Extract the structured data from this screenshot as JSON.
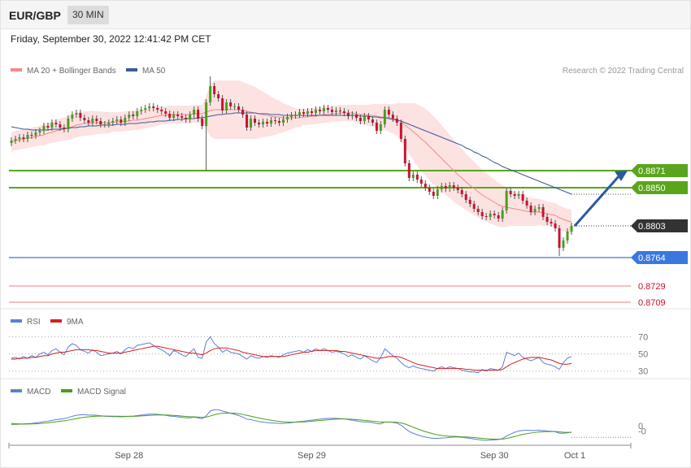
{
  "header": {
    "symbol": "EUR/GBP",
    "timeframe": "30 MIN"
  },
  "timestamp": "Friday, September 30, 2022 12:41:42 PM CET",
  "credit": "Research © 2022 Trading Central",
  "colors": {
    "up": "#4a9e1a",
    "down": "#c8102e",
    "ma20": "#f08a8a",
    "ma50": "#3a5a99",
    "band_fill": "#fde2e2",
    "resistance": "#5aa51c",
    "support": "#3a78e0",
    "support_minor": "#f0a8a8",
    "price": "#333333",
    "arrow": "#2c5aa0",
    "rsi": "#5b7fd4",
    "rsi_ma": "#d81e1e",
    "macd": "#5b7fd4",
    "macd_signal": "#4a9e1a"
  },
  "chart_data": [
    {
      "type": "candlestick",
      "legend": [
        "MA 20 + Bollinger Bands",
        "MA 50"
      ],
      "x_labels": [
        "Sep 28",
        "Sep 29",
        "Sep 30",
        "Oct 1"
      ],
      "ylim": [
        0.8705,
        0.8985
      ],
      "levels": [
        {
          "value": 0.8871,
          "label": "0.8871",
          "kind": "resistance"
        },
        {
          "value": 0.885,
          "label": "0.8850",
          "kind": "resistance"
        },
        {
          "value": 0.8803,
          "label": "0.8803",
          "kind": "price"
        },
        {
          "value": 0.8764,
          "label": "0.8764",
          "kind": "support"
        },
        {
          "value": 0.8729,
          "label": "0.8729",
          "kind": "support_minor"
        },
        {
          "value": 0.8709,
          "label": "0.8709",
          "kind": "support_minor"
        }
      ],
      "forecast": {
        "from": 0.8803,
        "to": 0.8871
      },
      "candles_close": [
        0.8908,
        0.891,
        0.8912,
        0.891,
        0.8915,
        0.8914,
        0.8918,
        0.892,
        0.8926,
        0.8924,
        0.893,
        0.8928,
        0.8924,
        0.8922,
        0.8935,
        0.894,
        0.8942,
        0.8936,
        0.8933,
        0.893,
        0.8935,
        0.8932,
        0.8928,
        0.8928,
        0.893,
        0.8932,
        0.8934,
        0.893,
        0.8936,
        0.894,
        0.8938,
        0.8944,
        0.8946,
        0.8948,
        0.895,
        0.8948,
        0.8946,
        0.8944,
        0.8941,
        0.8936,
        0.894,
        0.8938,
        0.8936,
        0.8934,
        0.894,
        0.8946,
        0.8935,
        0.8926,
        0.8955,
        0.8975,
        0.8965,
        0.896,
        0.8945,
        0.8955,
        0.895,
        0.895,
        0.8946,
        0.894,
        0.8924,
        0.8935,
        0.893,
        0.8928,
        0.8931,
        0.8929,
        0.8933,
        0.8932,
        0.893,
        0.8934,
        0.8937,
        0.8939,
        0.894,
        0.8943,
        0.8941,
        0.8944,
        0.8942,
        0.8946,
        0.8944,
        0.8948,
        0.8946,
        0.8943,
        0.8945,
        0.8944,
        0.8942,
        0.8938,
        0.894,
        0.8936,
        0.8932,
        0.8938,
        0.8934,
        0.893,
        0.892,
        0.8928,
        0.8946,
        0.894,
        0.8935,
        0.893,
        0.891,
        0.888,
        0.8862,
        0.8866,
        0.886,
        0.8855,
        0.885,
        0.8845,
        0.884,
        0.8848,
        0.8852,
        0.8849,
        0.8853,
        0.885,
        0.8847,
        0.8842,
        0.8835,
        0.883,
        0.8824,
        0.882,
        0.8815,
        0.8814,
        0.8818,
        0.8816,
        0.8812,
        0.8822,
        0.8846,
        0.8842,
        0.884,
        0.8842,
        0.8834,
        0.8828,
        0.882,
        0.8824,
        0.8826,
        0.8814,
        0.8808,
        0.8806,
        0.88,
        0.8776,
        0.8785,
        0.8796,
        0.8803
      ],
      "ma20": [
        0.8906,
        0.8908,
        0.8909,
        0.891,
        0.8911,
        0.8912,
        0.8913,
        0.8914,
        0.8915,
        0.8917,
        0.8918,
        0.892,
        0.8921,
        0.8922,
        0.8924,
        0.8925,
        0.8927,
        0.8928,
        0.8929,
        0.8929,
        0.893,
        0.893,
        0.893,
        0.893,
        0.893,
        0.8931,
        0.8931,
        0.8931,
        0.8932,
        0.8932,
        0.8933,
        0.8933,
        0.8934,
        0.8935,
        0.8936,
        0.8937,
        0.8938,
        0.8939,
        0.8939,
        0.894,
        0.894,
        0.894,
        0.894,
        0.894,
        0.894,
        0.8941,
        0.8941,
        0.8941,
        0.8943,
        0.8945,
        0.8946,
        0.8946,
        0.8946,
        0.8946,
        0.8946,
        0.8946,
        0.8946,
        0.8945,
        0.8944,
        0.8943,
        0.8942,
        0.8941,
        0.894,
        0.8939,
        0.8938,
        0.8937,
        0.8937,
        0.8936,
        0.8936,
        0.8936,
        0.8936,
        0.8936,
        0.8937,
        0.8937,
        0.8938,
        0.8938,
        0.8939,
        0.894,
        0.894,
        0.8941,
        0.8941,
        0.8942,
        0.8942,
        0.8942,
        0.8942,
        0.8941,
        0.894,
        0.894,
        0.8939,
        0.8939,
        0.8938,
        0.8937,
        0.8937,
        0.8936,
        0.8935,
        0.8934,
        0.8931,
        0.8927,
        0.8923,
        0.8919,
        0.8915,
        0.891,
        0.8906,
        0.8901,
        0.8896,
        0.8891,
        0.8886,
        0.8881,
        0.8876,
        0.8871,
        0.8866,
        0.8862,
        0.8857,
        0.8853,
        0.8849,
        0.8845,
        0.8841,
        0.8838,
        0.8835,
        0.8832,
        0.8829,
        0.8827,
        0.8826,
        0.8825,
        0.8824,
        0.8823,
        0.8822,
        0.8821,
        0.882,
        0.882,
        0.882,
        0.8819,
        0.8818,
        0.8817,
        0.8816,
        0.8813,
        0.8811,
        0.8809,
        0.8808
      ],
      "ma50": [
        0.8925,
        0.8924,
        0.8923,
        0.8922,
        0.8922,
        0.8921,
        0.8921,
        0.8921,
        0.8921,
        0.8921,
        0.8922,
        0.8922,
        0.8922,
        0.8923,
        0.8923,
        0.8924,
        0.8924,
        0.8925,
        0.8925,
        0.8926,
        0.8926,
        0.8926,
        0.8927,
        0.8927,
        0.8927,
        0.8927,
        0.8928,
        0.8928,
        0.8928,
        0.8929,
        0.8929,
        0.8929,
        0.893,
        0.893,
        0.8931,
        0.8931,
        0.8932,
        0.8932,
        0.8932,
        0.8933,
        0.8933,
        0.8934,
        0.8934,
        0.8935,
        0.8935,
        0.8935,
        0.8936,
        0.8936,
        0.8937,
        0.8938,
        0.8939,
        0.894,
        0.894,
        0.8941,
        0.8941,
        0.8942,
        0.8942,
        0.8942,
        0.8942,
        0.8942,
        0.8942,
        0.8941,
        0.8941,
        0.8941,
        0.894,
        0.894,
        0.894,
        0.8939,
        0.8939,
        0.8939,
        0.8939,
        0.8939,
        0.8939,
        0.8939,
        0.8939,
        0.8939,
        0.8939,
        0.8939,
        0.8939,
        0.8939,
        0.8939,
        0.8939,
        0.8939,
        0.8939,
        0.8939,
        0.8939,
        0.8938,
        0.8938,
        0.8938,
        0.8937,
        0.8937,
        0.8936,
        0.8936,
        0.8935,
        0.8934,
        0.8933,
        0.8932,
        0.893,
        0.8928,
        0.8926,
        0.8924,
        0.8922,
        0.892,
        0.8918,
        0.8916,
        0.8914,
        0.8912,
        0.891,
        0.8908,
        0.8906,
        0.8904,
        0.8902,
        0.8899,
        0.8897,
        0.8894,
        0.8892,
        0.8889,
        0.8887,
        0.8884,
        0.8881,
        0.8879,
        0.8876,
        0.8874,
        0.8872,
        0.887,
        0.8868,
        0.8866,
        0.8864,
        0.8862,
        0.886,
        0.8858,
        0.8856,
        0.8854,
        0.8852,
        0.885,
        0.8848,
        0.8846,
        0.8844,
        0.8842
      ],
      "band_width": [
        0.0012,
        0.0012,
        0.0012,
        0.0012,
        0.0012,
        0.0012,
        0.0012,
        0.0012,
        0.0013,
        0.0013,
        0.0013,
        0.0014,
        0.0014,
        0.0014,
        0.0015,
        0.0015,
        0.0015,
        0.0015,
        0.0015,
        0.0015,
        0.0015,
        0.0014,
        0.0014,
        0.0013,
        0.0013,
        0.0012,
        0.0012,
        0.0012,
        0.0012,
        0.0012,
        0.0012,
        0.0012,
        0.0012,
        0.0012,
        0.0012,
        0.0012,
        0.0012,
        0.0011,
        0.0011,
        0.0011,
        0.0011,
        0.0011,
        0.0011,
        0.0011,
        0.0011,
        0.0011,
        0.0011,
        0.0011,
        0.002,
        0.0032,
        0.0036,
        0.0036,
        0.0036,
        0.0036,
        0.0036,
        0.0036,
        0.0036,
        0.0035,
        0.0034,
        0.0033,
        0.0032,
        0.003,
        0.0028,
        0.0026,
        0.0024,
        0.0022,
        0.002,
        0.0018,
        0.0016,
        0.0014,
        0.0012,
        0.0011,
        0.001,
        0.001,
        0.001,
        0.001,
        0.001,
        0.001,
        0.001,
        0.001,
        0.001,
        0.001,
        0.001,
        0.001,
        0.001,
        0.0011,
        0.0012,
        0.0012,
        0.0013,
        0.0014,
        0.0015,
        0.0016,
        0.0016,
        0.0017,
        0.0018,
        0.002,
        0.0023,
        0.0027,
        0.0031,
        0.0035,
        0.0038,
        0.004,
        0.0041,
        0.0042,
        0.0042,
        0.0042,
        0.0041,
        0.004,
        0.0039,
        0.0038,
        0.0037,
        0.0036,
        0.0035,
        0.0034,
        0.0033,
        0.0032,
        0.0031,
        0.003,
        0.0029,
        0.0028,
        0.0027,
        0.0026,
        0.0024,
        0.0022,
        0.0021,
        0.002,
        0.0019,
        0.0018,
        0.0017,
        0.0017,
        0.0016,
        0.0016,
        0.0015,
        0.0015,
        0.0015,
        0.0015,
        0.0015,
        0.0015,
        0.0015
      ]
    },
    {
      "type": "line",
      "legend": [
        "RSI",
        "9MA"
      ],
      "ylim": [
        25,
        80
      ],
      "ticks": [
        {
          "value": 70,
          "label": "70"
        },
        {
          "value": 50,
          "label": "50"
        },
        {
          "value": 30,
          "label": "30"
        }
      ],
      "rsi": [
        45,
        46,
        44,
        47,
        45,
        48,
        46,
        50,
        52,
        49,
        54,
        56,
        52,
        49,
        58,
        62,
        60,
        55,
        53,
        51,
        55,
        52,
        48,
        49,
        50,
        51,
        53,
        50,
        55,
        58,
        56,
        60,
        61,
        62,
        63,
        60,
        57,
        55,
        52,
        48,
        54,
        52,
        49,
        47,
        52,
        56,
        46,
        45,
        64,
        70,
        62,
        58,
        52,
        55,
        52,
        51,
        50,
        47,
        44,
        48,
        46,
        45,
        47,
        46,
        48,
        47,
        46,
        49,
        51,
        52,
        53,
        54,
        52,
        55,
        53,
        56,
        54,
        56,
        54,
        52,
        53,
        52,
        50,
        47,
        49,
        46,
        44,
        48,
        45,
        42,
        40,
        46,
        56,
        52,
        48,
        45,
        40,
        36,
        34,
        36,
        34,
        33,
        32,
        31,
        30,
        33,
        35,
        33,
        35,
        34,
        33,
        31,
        30,
        29,
        29,
        28,
        32,
        30,
        33,
        32,
        31,
        35,
        52,
        50,
        48,
        51,
        46,
        44,
        42,
        44,
        46,
        40,
        38,
        37,
        35,
        32,
        40,
        45,
        47
      ],
      "rsi_ma": [
        44,
        44,
        45,
        45,
        45,
        46,
        46,
        47,
        48,
        48,
        50,
        51,
        52,
        52,
        53,
        54,
        55,
        55,
        55,
        55,
        54,
        54,
        53,
        52,
        51,
        51,
        51,
        51,
        52,
        53,
        54,
        55,
        56,
        57,
        58,
        59,
        59,
        58,
        57,
        56,
        55,
        54,
        53,
        52,
        51,
        51,
        50,
        49,
        51,
        54,
        56,
        57,
        57,
        57,
        56,
        55,
        54,
        52,
        51,
        50,
        49,
        48,
        47,
        47,
        47,
        47,
        47,
        47,
        48,
        49,
        50,
        51,
        52,
        52,
        53,
        54,
        54,
        54,
        54,
        54,
        54,
        53,
        53,
        52,
        51,
        50,
        49,
        48,
        47,
        46,
        45,
        45,
        46,
        47,
        47,
        47,
        46,
        44,
        42,
        40,
        38,
        37,
        36,
        35,
        34,
        33,
        33,
        33,
        33,
        33,
        33,
        33,
        32,
        32,
        31,
        31,
        31,
        31,
        31,
        31,
        31,
        32,
        35,
        38,
        40,
        42,
        44,
        45,
        46,
        46,
        46,
        45,
        44,
        43,
        41,
        39,
        38,
        38,
        39
      ]
    },
    {
      "type": "line",
      "legend": [
        "MACD",
        "MACD Signal"
      ],
      "ylim": [
        -0.0014,
        0.0022
      ],
      "ticks": [
        {
          "value": 0,
          "label": "0"
        },
        {
          "value": -0.0004,
          "label": "-0"
        }
      ],
      "macd": [
        0.0002,
        0.00018,
        0.00016,
        0.00016,
        0.00018,
        0.0002,
        0.00024,
        0.00028,
        0.00034,
        0.00038,
        0.00044,
        0.0005,
        0.00054,
        0.00058,
        0.00066,
        0.00076,
        0.00084,
        0.00088,
        0.00088,
        0.00086,
        0.00086,
        0.00084,
        0.0008,
        0.00077,
        0.00075,
        0.00074,
        0.00074,
        0.00072,
        0.00074,
        0.00076,
        0.00078,
        0.00082,
        0.00086,
        0.0009,
        0.00094,
        0.00094,
        0.00092,
        0.00088,
        0.00084,
        0.00078,
        0.00076,
        0.00072,
        0.00068,
        0.00064,
        0.00064,
        0.0007,
        0.00064,
        0.00056,
        0.0008,
        0.00118,
        0.00128,
        0.00128,
        0.00118,
        0.0011,
        0.001,
        0.00092,
        0.00082,
        0.0007,
        0.00054,
        0.0005,
        0.00042,
        0.00034,
        0.0003,
        0.00026,
        0.00024,
        0.00022,
        0.0002,
        0.0002,
        0.00022,
        0.00026,
        0.0003,
        0.00034,
        0.00038,
        0.00042,
        0.00046,
        0.0005,
        0.00054,
        0.00058,
        0.0006,
        0.0006,
        0.0006,
        0.00058,
        0.00056,
        0.0005,
        0.00046,
        0.0004,
        0.00034,
        0.00032,
        0.0003,
        0.00026,
        0.00018,
        0.00016,
        0.0003,
        0.00032,
        0.00028,
        0.00022,
        6e-05,
        -0.0002,
        -0.00044,
        -0.00058,
        -0.0007,
        -0.0008,
        -0.00088,
        -0.00094,
        -0.00098,
        -0.00098,
        -0.00096,
        -0.00094,
        -0.0009,
        -0.00088,
        -0.00088,
        -0.0009,
        -0.00094,
        -0.00098,
        -0.00104,
        -0.00108,
        -0.00112,
        -0.00114,
        -0.00112,
        -0.0011,
        -0.00108,
        -0.001,
        -0.0008,
        -0.00064,
        -0.0005,
        -0.0004,
        -0.00036,
        -0.00034,
        -0.00036,
        -0.00036,
        -0.00034,
        -0.00036,
        -0.0004,
        -0.00042,
        -0.00046,
        -0.00058,
        -0.00058,
        -0.00054,
        -0.0005
      ],
      "macd_signal": [
        0.00012,
        0.00013,
        0.00014,
        0.00014,
        0.00015,
        0.00016,
        0.00017,
        0.00019,
        0.00022,
        0.00025,
        0.00029,
        0.00033,
        0.00037,
        0.00041,
        0.00046,
        0.00052,
        0.00058,
        0.00064,
        0.00069,
        0.00072,
        0.00075,
        0.00077,
        0.00078,
        0.00078,
        0.00078,
        0.00077,
        0.00077,
        0.00076,
        0.00076,
        0.00076,
        0.00076,
        0.00077,
        0.00079,
        0.00081,
        0.00083,
        0.00085,
        0.00087,
        0.00087,
        0.00087,
        0.00085,
        0.00083,
        0.00081,
        0.00078,
        0.00075,
        0.00073,
        0.00072,
        0.0007,
        0.00068,
        0.0007,
        0.00079,
        0.00088,
        0.00096,
        0.001,
        0.00102,
        0.00102,
        0.001,
        0.00097,
        0.00091,
        0.00084,
        0.00077,
        0.0007,
        0.00063,
        0.00056,
        0.0005,
        0.00045,
        0.0004,
        0.00036,
        0.00033,
        0.00031,
        0.0003,
        0.0003,
        0.00031,
        0.00032,
        0.00034,
        0.00037,
        0.0004,
        0.00043,
        0.00046,
        0.00049,
        0.00052,
        0.00054,
        0.00055,
        0.00055,
        0.00054,
        0.00053,
        0.0005,
        0.00047,
        0.00044,
        0.00041,
        0.00038,
        0.00034,
        0.0003,
        0.0003,
        0.0003,
        0.0003,
        0.00029,
        0.00024,
        0.00015,
        3e-05,
        -0.0001,
        -0.00022,
        -0.00034,
        -0.00045,
        -0.00054,
        -0.00063,
        -0.0007,
        -0.00075,
        -0.00079,
        -0.00082,
        -0.00083,
        -0.00084,
        -0.00086,
        -0.00087,
        -0.00089,
        -0.00092,
        -0.00095,
        -0.00098,
        -0.00101,
        -0.00103,
        -0.00105,
        -0.00105,
        -0.00104,
        -0.00099,
        -0.00092,
        -0.00084,
        -0.00075,
        -0.00067,
        -0.00061,
        -0.00056,
        -0.00052,
        -0.00048,
        -0.00046,
        -0.00045,
        -0.00044,
        -0.00044,
        -0.00047,
        -0.0005,
        -0.00051,
        -0.00051
      ]
    }
  ]
}
